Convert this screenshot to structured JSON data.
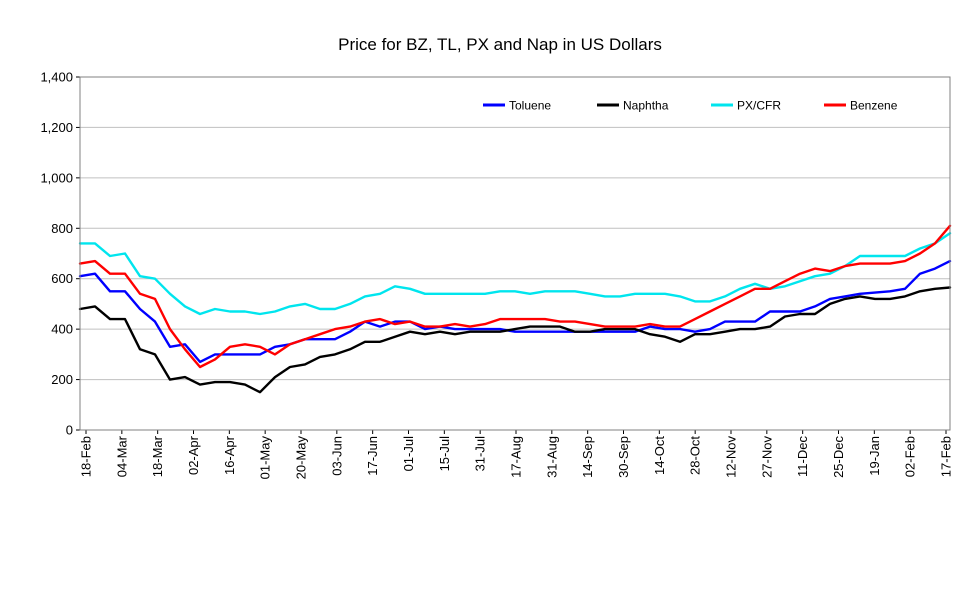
{
  "chart_data": {
    "type": "line",
    "title": "Price for BZ, TL, PX and Nap in US Dollars",
    "xlabel": "",
    "ylabel": "",
    "ylim": [
      0,
      1400
    ],
    "yticks": [
      0,
      200,
      400,
      600,
      800,
      1000,
      1200,
      1400
    ],
    "ytick_labels": [
      "0",
      "200",
      "400",
      "600",
      "800",
      "1,000",
      "1,200",
      "1,400"
    ],
    "grid": true,
    "legend_position": "top-right",
    "x_tick_labels": [
      "18-Feb",
      "04-Mar",
      "18-Mar",
      "02-Apr",
      "16-Apr",
      "01-May",
      "20-May",
      "03-Jun",
      "17-Jun",
      "01-Jul",
      "15-Jul",
      "31-Jul",
      "17-Aug",
      "31-Aug",
      "14-Sep",
      "30-Sep",
      "14-Oct",
      "28-Oct",
      "12-Nov",
      "27-Nov",
      "11-Dec",
      "25-Dec",
      "19-Jan",
      "02-Feb",
      "17-Feb"
    ],
    "series": [
      {
        "name": "Toluene",
        "color": "#0000ff",
        "values": [
          610,
          620,
          550,
          550,
          480,
          430,
          330,
          340,
          270,
          300,
          300,
          300,
          300,
          330,
          340,
          360,
          360,
          360,
          390,
          430,
          410,
          430,
          430,
          400,
          410,
          400,
          400,
          400,
          400,
          390,
          390,
          390,
          390,
          390,
          390,
          390,
          390,
          390,
          410,
          400,
          400,
          390,
          400,
          430,
          430,
          430,
          470,
          470,
          470,
          490,
          520,
          530,
          540,
          545,
          550,
          560,
          620,
          640,
          670
        ]
      },
      {
        "name": "Naphtha",
        "color": "#000000",
        "values": [
          480,
          490,
          440,
          440,
          320,
          300,
          200,
          210,
          180,
          190,
          190,
          180,
          150,
          210,
          250,
          260,
          290,
          300,
          320,
          350,
          350,
          370,
          390,
          380,
          390,
          380,
          390,
          390,
          390,
          400,
          410,
          410,
          410,
          390,
          390,
          400,
          400,
          400,
          380,
          370,
          350,
          380,
          380,
          390,
          400,
          400,
          410,
          450,
          460,
          460,
          500,
          520,
          530,
          520,
          520,
          530,
          550,
          560,
          565
        ]
      },
      {
        "name": "PX/CFR",
        "color": "#00e5ee",
        "values": [
          740,
          740,
          690,
          700,
          610,
          600,
          540,
          490,
          460,
          480,
          470,
          470,
          460,
          470,
          490,
          500,
          480,
          480,
          500,
          530,
          540,
          570,
          560,
          540,
          540,
          540,
          540,
          540,
          550,
          550,
          540,
          550,
          550,
          550,
          540,
          530,
          530,
          540,
          540,
          540,
          530,
          510,
          510,
          530,
          560,
          580,
          560,
          570,
          590,
          610,
          620,
          650,
          690,
          690,
          690,
          690,
          720,
          740,
          780
        ]
      },
      {
        "name": "Benzene",
        "color": "#ff0000",
        "values": [
          660,
          670,
          620,
          620,
          540,
          520,
          400,
          320,
          250,
          280,
          330,
          340,
          330,
          300,
          340,
          360,
          380,
          400,
          410,
          430,
          440,
          420,
          430,
          410,
          410,
          420,
          410,
          420,
          440,
          440,
          440,
          440,
          430,
          430,
          420,
          410,
          410,
          410,
          420,
          410,
          410,
          440,
          470,
          500,
          530,
          560,
          560,
          590,
          620,
          640,
          630,
          650,
          660,
          660,
          660,
          670,
          700,
          740,
          810
        ]
      }
    ]
  }
}
